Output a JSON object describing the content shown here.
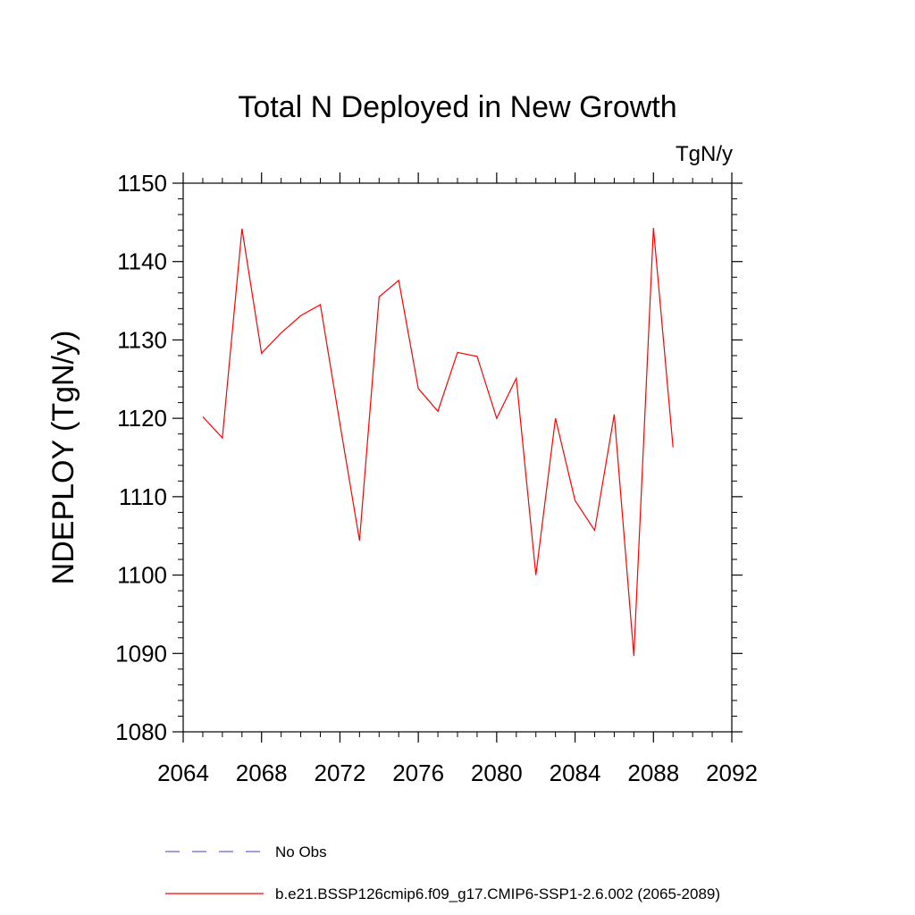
{
  "chart_data": {
    "type": "line",
    "title": "Total N Deployed in New Growth",
    "units": "TgN/y",
    "xlabel": "",
    "ylabel": "NDEPLOY  (TgN/y)",
    "xlim": [
      2064,
      2092
    ],
    "ylim": [
      1080,
      1150
    ],
    "x_ticks": [
      2064,
      2068,
      2072,
      2076,
      2080,
      2084,
      2088,
      2092
    ],
    "y_ticks": [
      1080,
      1090,
      1100,
      1110,
      1120,
      1130,
      1140,
      1150
    ],
    "series": [
      {
        "name": "b.e21.BSSP126cmip6.f09_g17.CMIP6-SSP1-2.6.002 (2065-2089)",
        "color": "#ff0000",
        "dash": "solid",
        "x": [
          2065,
          2066,
          2067,
          2068,
          2069,
          2070,
          2071,
          2072,
          2073,
          2074,
          2075,
          2076,
          2077,
          2078,
          2079,
          2080,
          2081,
          2082,
          2083,
          2084,
          2085,
          2086,
          2087,
          2088,
          2089
        ],
        "y": [
          1120.2,
          1117.5,
          1144.2,
          1128.3,
          1130.9,
          1133.1,
          1134.5,
          1119.3,
          1104.4,
          1135.5,
          1137.6,
          1123.8,
          1120.9,
          1128.4,
          1127.9,
          1120.0,
          1125.1,
          1100.0,
          1120.0,
          1109.5,
          1105.7,
          1120.5,
          1089.7,
          1144.3,
          1116.3
        ]
      }
    ],
    "legend": [
      {
        "label": "No Obs",
        "color": "#6666cc",
        "dash": "dashed"
      },
      {
        "label": "b.e21.BSSP126cmip6.f09_g17.CMIP6-SSP1-2.6.002 (2065-2089)",
        "color": "#ff0000",
        "dash": "solid"
      }
    ]
  }
}
